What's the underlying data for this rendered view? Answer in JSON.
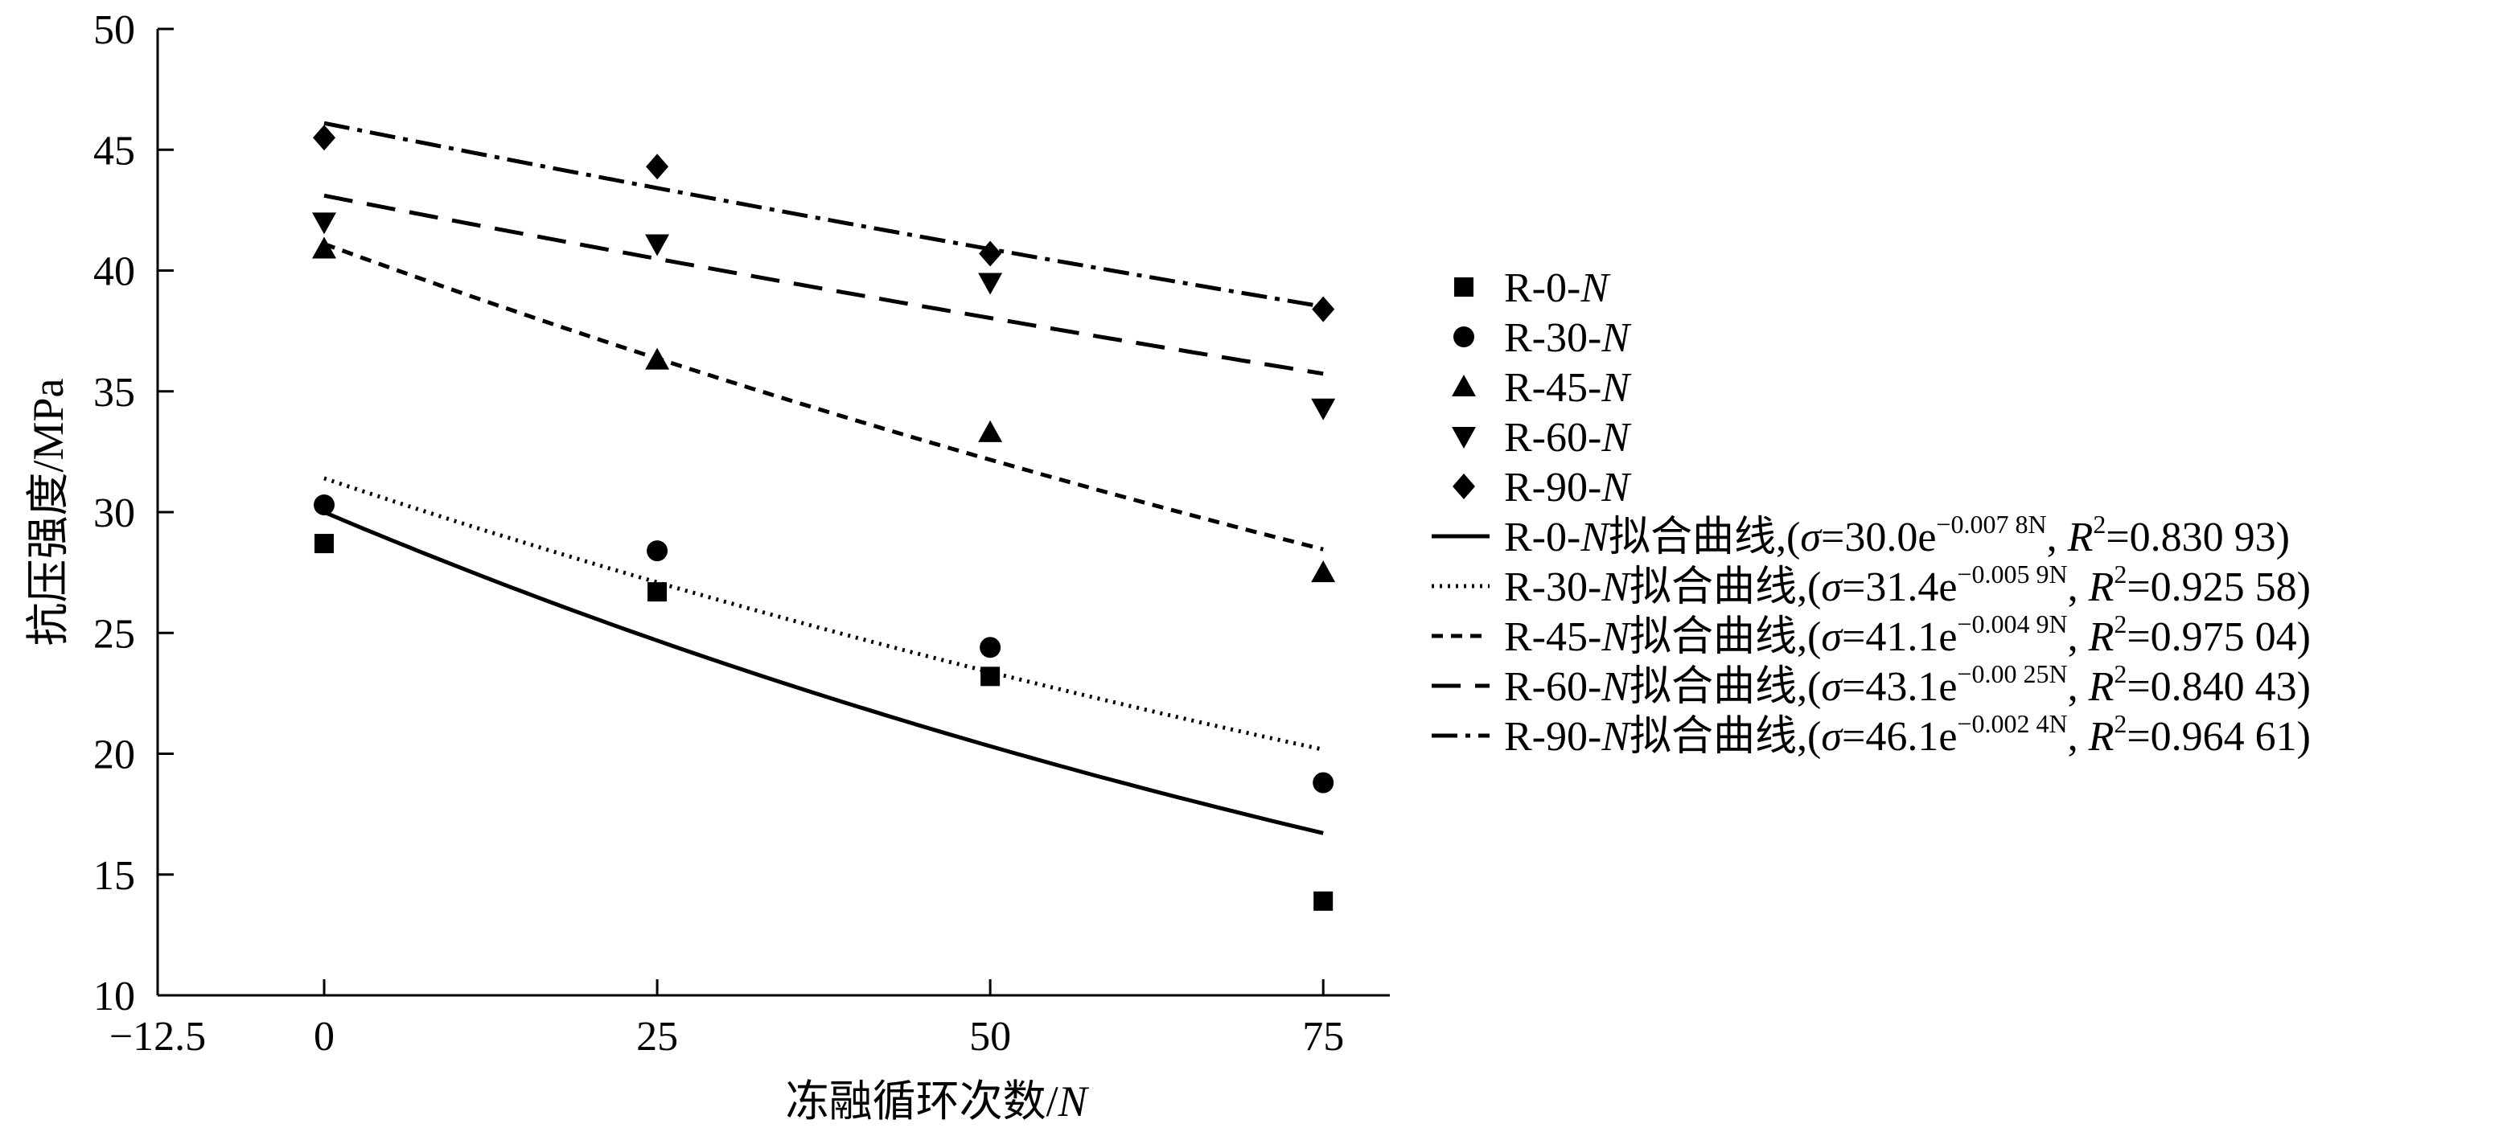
{
  "chart_data": {
    "type": "scatter",
    "xlabel": "冻融循环次数/N",
    "ylabel": "抗压强度/MPa",
    "xlim": [
      -12.5,
      80
    ],
    "ylim": [
      10,
      50
    ],
    "x_ticks": [
      -12.5,
      0,
      25,
      50,
      75
    ],
    "x_tick_labels": [
      "−12.5",
      "0",
      "25",
      "50",
      "75"
    ],
    "y_ticks": [
      10,
      15,
      20,
      25,
      30,
      35,
      40,
      45,
      50
    ],
    "y_tick_labels": [
      "10",
      "15",
      "20",
      "25",
      "30",
      "35",
      "40",
      "45",
      "50"
    ],
    "grid": false,
    "legend_position": "right",
    "series": [
      {
        "name": "R-0-N",
        "marker": "square",
        "x": [
          0,
          25,
          50,
          75
        ],
        "y": [
          28.7,
          26.7,
          23.2,
          13.9
        ]
      },
      {
        "name": "R-30-N",
        "marker": "circle",
        "x": [
          0,
          25,
          50,
          75
        ],
        "y": [
          30.3,
          28.4,
          24.4,
          18.8
        ]
      },
      {
        "name": "R-45-N",
        "marker": "triangle-up",
        "x": [
          0,
          25,
          50,
          75
        ],
        "y": [
          40.9,
          36.3,
          33.3,
          27.5
        ]
      },
      {
        "name": "R-60-N",
        "marker": "triangle-down",
        "x": [
          0,
          25,
          50,
          75
        ],
        "y": [
          42.0,
          41.1,
          39.5,
          34.3
        ]
      },
      {
        "name": "R-90-N",
        "marker": "diamond",
        "x": [
          0,
          25,
          50,
          75
        ],
        "y": [
          45.5,
          44.3,
          40.7,
          38.4
        ]
      }
    ],
    "fits": [
      {
        "name": "R-0-N拟合曲线",
        "style": "solid",
        "a": 30.0,
        "k": 0.0078,
        "eq_prefix": "R-0-",
        "eq_n": "N",
        "eq_cn": "拟合曲线,(",
        "eq_sigma": "σ",
        "eq_mid": "=30.0e",
        "eq_exp": "−0.007 8N",
        "eq_sep": ", ",
        "eq_r": "R",
        "eq_r_sup": "2",
        "eq_end": "=0.830 93)"
      },
      {
        "name": "R-30-N拟合曲线",
        "style": "dotted",
        "a": 31.4,
        "k": 0.0059,
        "eq_prefix": "R-30-",
        "eq_n": "N",
        "eq_cn": "拟合曲线,(",
        "eq_sigma": "σ",
        "eq_mid": "=31.4e",
        "eq_exp": "−0.005 9N",
        "eq_sep": ", ",
        "eq_r": "R",
        "eq_r_sup": "2",
        "eq_end": "=0.925 58)"
      },
      {
        "name": "R-45-N拟合曲线",
        "style": "short-dash",
        "a": 41.1,
        "k": 0.0049,
        "eq_prefix": "R-45-",
        "eq_n": "N",
        "eq_cn": "拟合曲线,(",
        "eq_sigma": "σ",
        "eq_mid": "=41.1e",
        "eq_exp": "−0.004 9N",
        "eq_sep": ", ",
        "eq_r": "R",
        "eq_r_sup": "2",
        "eq_end": "=0.975 04)"
      },
      {
        "name": "R-60-N拟合曲线",
        "style": "long-dash",
        "a": 43.1,
        "k": 0.0025,
        "eq_prefix": "R-60-",
        "eq_n": "N",
        "eq_cn": "拟合曲线,(",
        "eq_sigma": "σ",
        "eq_mid": "=43.1e",
        "eq_exp": "−0.00 25N",
        "eq_sep": ", ",
        "eq_r": "R",
        "eq_r_sup": "2",
        "eq_end": "=0.840 43)"
      },
      {
        "name": "R-90-N拟合曲线",
        "style": "dash-dot",
        "a": 46.1,
        "k": 0.0024,
        "eq_prefix": "R-90-",
        "eq_n": "N",
        "eq_cn": "拟合曲线,(",
        "eq_sigma": "σ",
        "eq_mid": "=46.1e",
        "eq_exp": "−0.002 4N",
        "eq_sep": ", ",
        "eq_r": "R",
        "eq_r_sup": "2",
        "eq_end": "=0.964 61)"
      }
    ]
  }
}
